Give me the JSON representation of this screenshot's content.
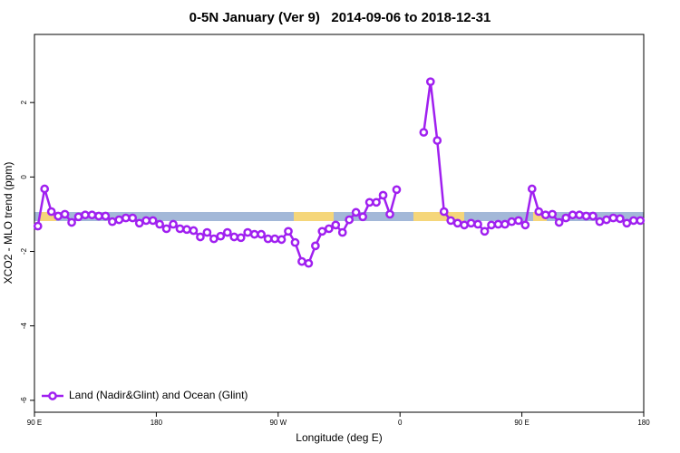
{
  "chart_data": {
    "type": "line",
    "title": "0-5N January (Ver 9)   2014-09-06 to 2018-12-31",
    "x_label": "Longitude (deg E)",
    "y_label": "XCO2 - MLO trend (ppm)",
    "x": [
      92.5,
      97.5,
      102.5,
      107.5,
      112.5,
      117.5,
      122.5,
      127.5,
      132.5,
      137.5,
      142.5,
      147.5,
      152.5,
      157.5,
      162.5,
      167.5,
      172.5,
      177.5,
      182.5,
      187.5,
      192.5,
      197.5,
      202.5,
      207.5,
      212.5,
      217.5,
      222.5,
      227.5,
      232.5,
      237.5,
      242.5,
      247.5,
      252.5,
      257.5,
      262.5,
      267.5,
      272.5,
      277.5,
      282.5,
      287.5,
      292.5,
      297.5,
      302.5,
      307.5,
      312.5,
      317.5,
      322.5,
      327.5,
      332.5,
      337.5,
      342.5,
      347.5,
      352.5,
      357.5,
      362.5,
      367.5,
      372.5,
      377.5,
      382.5,
      387.5,
      392.5,
      397.5,
      402.5,
      407.5,
      412.5,
      417.5,
      422.5,
      427.5,
      432.5,
      437.5,
      442.5,
      447.5,
      452.5,
      457.5,
      462.5,
      467.5,
      472.5,
      477.5,
      482.5,
      487.5,
      492.5,
      497.5,
      502.5,
      507.5,
      512.5,
      517.5,
      522.5,
      527.5,
      532.5,
      537.5
    ],
    "series": [
      {
        "name": "Land (Nadir&Glint) and Ocean (Glint)",
        "color": "#a020f0",
        "values": [
          -1.32,
          -0.32,
          -0.93,
          -1.05,
          -1.0,
          -1.22,
          -1.07,
          -1.02,
          -1.02,
          -1.05,
          -1.05,
          -1.2,
          -1.15,
          -1.1,
          -1.1,
          -1.24,
          -1.17,
          -1.17,
          -1.27,
          -1.39,
          -1.27,
          -1.39,
          -1.41,
          -1.44,
          -1.61,
          -1.49,
          -1.66,
          -1.59,
          -1.49,
          -1.61,
          -1.63,
          -1.49,
          -1.54,
          -1.54,
          -1.66,
          -1.66,
          -1.68,
          -1.46,
          -1.76,
          -2.27,
          -2.32,
          -1.85,
          -1.46,
          -1.39,
          -1.29,
          -1.49,
          -1.15,
          -0.95,
          -1.07,
          -0.68,
          -0.68,
          -0.49,
          -1.0,
          -0.34,
          null,
          null,
          null,
          1.2,
          2.56,
          0.98,
          -0.93,
          -1.17,
          -1.24,
          -1.29,
          -1.24,
          -1.27,
          -1.46,
          -1.29,
          -1.27,
          -1.27,
          -1.2,
          -1.17,
          -1.29,
          -0.32,
          -0.93,
          -1.02,
          -1.0,
          -1.22,
          -1.1,
          -1.02,
          -1.02,
          -1.05,
          -1.05,
          -1.2,
          -1.15,
          -1.1,
          -1.12,
          -1.24,
          -1.17,
          -1.17
        ]
      }
    ],
    "xlim": [
      90,
      540
    ],
    "xticks": [
      {
        "value": 90,
        "label": "90 E"
      },
      180,
      {
        "value": 270,
        "label": "90 W"
      },
      {
        "value": 360,
        "label": "0"
      },
      {
        "value": 450,
        "label": "90 E"
      },
      {
        "value": 540,
        "label": "180"
      }
    ],
    "ylim": [
      -6.32,
      3.83
    ],
    "yticks": [
      -6,
      -4,
      -2,
      0,
      2
    ],
    "legend": "bottom-left"
  }
}
